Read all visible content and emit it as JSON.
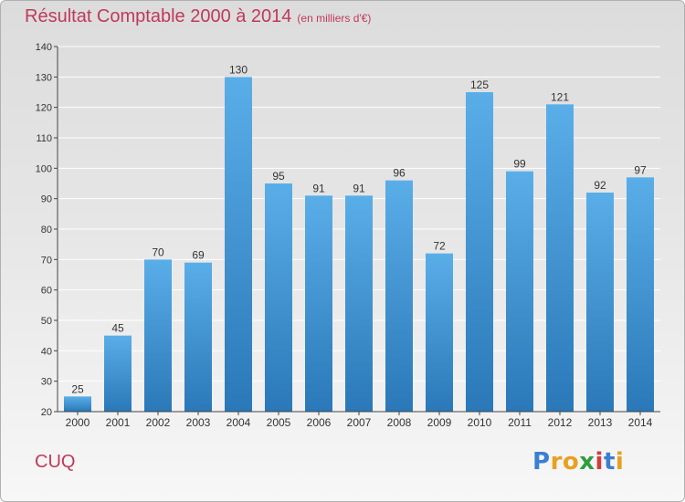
{
  "title": "Résultat Comptable 2000 à 2014",
  "subtitle": "(en milliers d'€)",
  "commune": "CUQ",
  "logo": {
    "text": "Proxiti",
    "colors": [
      "#3a7fd0",
      "#e8a020",
      "#e8a020",
      "#2e9e3e",
      "#d43a3a",
      "#3a7fd0",
      "#e8a020"
    ]
  },
  "colors": {
    "title": "#c0395a",
    "bar_top": "#5aaee8",
    "bar_bottom": "#2a78b8",
    "axis": "#444444",
    "grid": "#ffffff"
  },
  "chart_data": {
    "type": "bar",
    "categories": [
      "2000",
      "2001",
      "2002",
      "2003",
      "2004",
      "2005",
      "2006",
      "2007",
      "2008",
      "2009",
      "2010",
      "2011",
      "2012",
      "2013",
      "2014"
    ],
    "values": [
      25,
      45,
      70,
      69,
      130,
      95,
      91,
      91,
      96,
      72,
      125,
      99,
      121,
      92,
      97
    ],
    "title": "Résultat Comptable 2000 à 2014",
    "xlabel": "",
    "ylabel": "",
    "ylim": [
      20,
      140
    ],
    "yticks": [
      20,
      30,
      40,
      50,
      60,
      70,
      80,
      90,
      100,
      110,
      120,
      130,
      140
    ],
    "grid": true,
    "data_labels": true
  }
}
